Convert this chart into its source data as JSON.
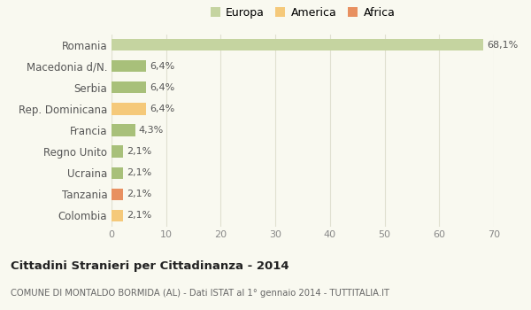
{
  "categories": [
    "Colombia",
    "Tanzania",
    "Ucraina",
    "Regno Unito",
    "Francia",
    "Rep. Dominicana",
    "Serbia",
    "Macedonia d/N.",
    "Romania"
  ],
  "values": [
    2.1,
    2.1,
    2.1,
    2.1,
    4.3,
    6.4,
    6.4,
    6.4,
    68.1
  ],
  "labels": [
    "2,1%",
    "2,1%",
    "2,1%",
    "2,1%",
    "4,3%",
    "6,4%",
    "6,4%",
    "6,4%",
    "68,1%"
  ],
  "colors": [
    "#f5c97a",
    "#e89060",
    "#a8c07a",
    "#a8c07a",
    "#a8c07a",
    "#f5c97a",
    "#a8c07a",
    "#a8c07a",
    "#c5d4a0"
  ],
  "legend_items": [
    {
      "label": "Europa",
      "color": "#c5d4a0"
    },
    {
      "label": "America",
      "color": "#f5c97a"
    },
    {
      "label": "Africa",
      "color": "#e89060"
    }
  ],
  "title": "Cittadini Stranieri per Cittadinanza - 2014",
  "subtitle": "COMUNE DI MONTALDO BORMIDA (AL) - Dati ISTAT al 1° gennaio 2014 - TUTTITALIA.IT",
  "xlim": [
    0,
    70
  ],
  "xticks": [
    0,
    10,
    20,
    30,
    40,
    50,
    60,
    70
  ],
  "background_color": "#f9f9f0",
  "grid_color": "#e0e0d0",
  "bar_height": 0.55
}
